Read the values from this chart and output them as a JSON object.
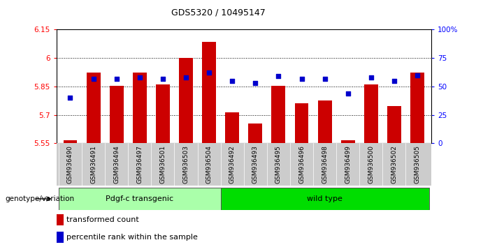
{
  "title": "GDS5320 / 10495147",
  "samples": [
    "GSM936490",
    "GSM936491",
    "GSM936494",
    "GSM936497",
    "GSM936501",
    "GSM936503",
    "GSM936504",
    "GSM936492",
    "GSM936493",
    "GSM936495",
    "GSM936496",
    "GSM936498",
    "GSM936499",
    "GSM936500",
    "GSM936502",
    "GSM936505"
  ],
  "transformed_count": [
    5.565,
    5.925,
    5.855,
    5.925,
    5.86,
    6.0,
    6.085,
    5.715,
    5.655,
    5.855,
    5.76,
    5.775,
    5.565,
    5.86,
    5.745,
    5.925
  ],
  "percentile_rank": [
    40,
    57,
    57,
    58,
    57,
    58,
    62,
    55,
    53,
    59,
    57,
    57,
    44,
    58,
    55,
    60
  ],
  "ylim": [
    5.55,
    6.15
  ],
  "yticks": [
    5.55,
    5.7,
    5.85,
    6.0,
    6.15
  ],
  "ytick_labels": [
    "5.55",
    "5.7",
    "5.85",
    "6",
    "6.15"
  ],
  "right_ylim": [
    0,
    100
  ],
  "right_yticks": [
    0,
    25,
    50,
    75,
    100
  ],
  "right_yticklabels": [
    "0",
    "25",
    "50",
    "75",
    "100%"
  ],
  "bar_color": "#cc0000",
  "dot_color": "#0000cc",
  "baseline": 5.55,
  "group1_label": "Pdgf-c transgenic",
  "group2_label": "wild type",
  "group1_count": 7,
  "group2_count": 9,
  "legend_bar": "transformed count",
  "legend_dot": "percentile rank within the sample",
  "group_label": "genotype/variation",
  "tick_bg": "#cccccc",
  "group1_color": "#aaffaa",
  "group2_color": "#00dd00"
}
